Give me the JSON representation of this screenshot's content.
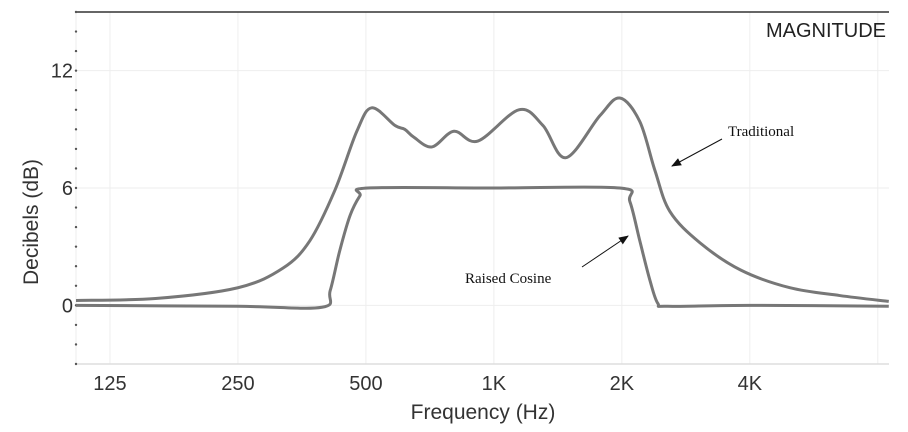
{
  "chart_data": {
    "type": "line",
    "title": "MAGNITUDE",
    "xlabel": "Frequency (Hz)",
    "ylabel": "Decibels (dB)",
    "xscale": "log2",
    "xlim": [
      104,
      8500
    ],
    "ylim": [
      -3,
      15
    ],
    "x_ticks": [
      125,
      250,
      500,
      1000,
      2000,
      4000,
      8000
    ],
    "x_tick_labels": [
      "125",
      "250",
      "500",
      "1K",
      "2K",
      "4K",
      ""
    ],
    "y_ticks": [
      0,
      6,
      12
    ],
    "y_tick_labels": [
      "0",
      "6",
      "12"
    ],
    "y_minor_step": 1,
    "grid": true,
    "line_color": "#777777",
    "series": [
      {
        "name": "Traditional",
        "x": [
          104,
          160,
          250,
          319,
          369,
          423,
          476,
          516,
          585,
          617,
          648,
          715,
          805,
          917,
          1145,
          1304,
          1477,
          1776,
          1978,
          2204,
          2392,
          2594,
          3052,
          3810,
          4968,
          6510,
          8490
        ],
        "y": [
          0.25,
          0.35,
          0.9,
          1.9,
          3.3,
          5.9,
          8.9,
          10.1,
          9.2,
          9.0,
          8.6,
          8.1,
          8.9,
          8.4,
          10.0,
          9.2,
          7.55,
          9.7,
          10.6,
          9.4,
          6.9,
          4.8,
          3.2,
          1.8,
          0.9,
          0.5,
          0.2
        ]
      },
      {
        "name": "Raised Cosine",
        "x": [
          104,
          250,
          394,
          412,
          434,
          459,
          484,
          505,
          1000,
          1978,
          2089,
          2204,
          2327,
          2430,
          2567,
          4000,
          8490
        ],
        "y": [
          0.0,
          -0.05,
          -0.1,
          0.75,
          2.8,
          4.6,
          5.6,
          6.0,
          6.0,
          6.0,
          5.3,
          3.3,
          1.3,
          0.1,
          -0.05,
          0.0,
          -0.05
        ]
      }
    ],
    "annotations": [
      {
        "text": "Traditional",
        "series": "Traditional"
      },
      {
        "text": "Raised Cosine",
        "series": "Raised Cosine"
      }
    ]
  }
}
